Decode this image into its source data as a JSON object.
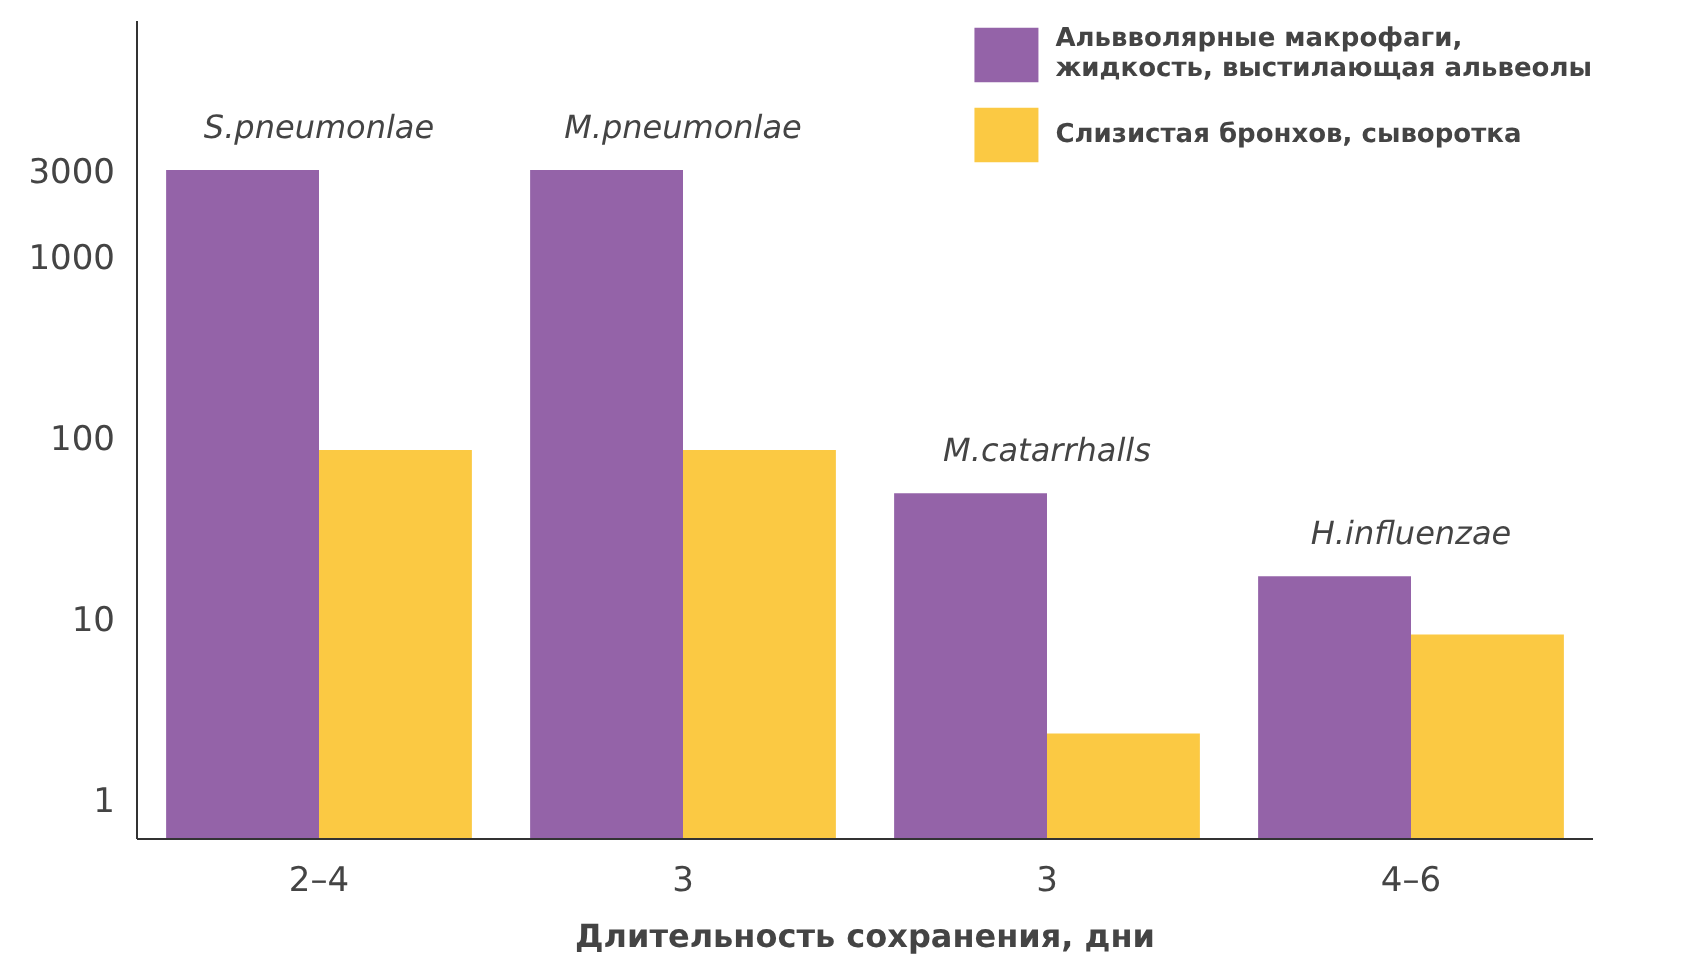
{
  "chart_data": {
    "type": "bar",
    "xlabel": "Длительность сохранения, дни",
    "categories": [
      "2–4",
      "3",
      "3",
      "4–6"
    ],
    "series": [
      {
        "name": "Альвволярные макрофаги, жидкость, выстилающая альвеолы",
        "color": "#9463a8",
        "values": [
          3000,
          3000,
          49,
          17
        ]
      },
      {
        "name": "Слизистая бронхов, сыворотка",
        "color": "#fbc943",
        "values": [
          85,
          85,
          2.3,
          8.1
        ]
      }
    ],
    "log": "y",
    "ylim": [
      0.6,
      20000
    ],
    "yticks": [
      1,
      10,
      100,
      1000,
      3000
    ],
    "annotations": [
      "S.pneumonlae",
      "M.pneumonlae",
      "M.catarrhalls",
      "H.influenzae"
    ],
    "grid": false,
    "legend": "top right"
  }
}
